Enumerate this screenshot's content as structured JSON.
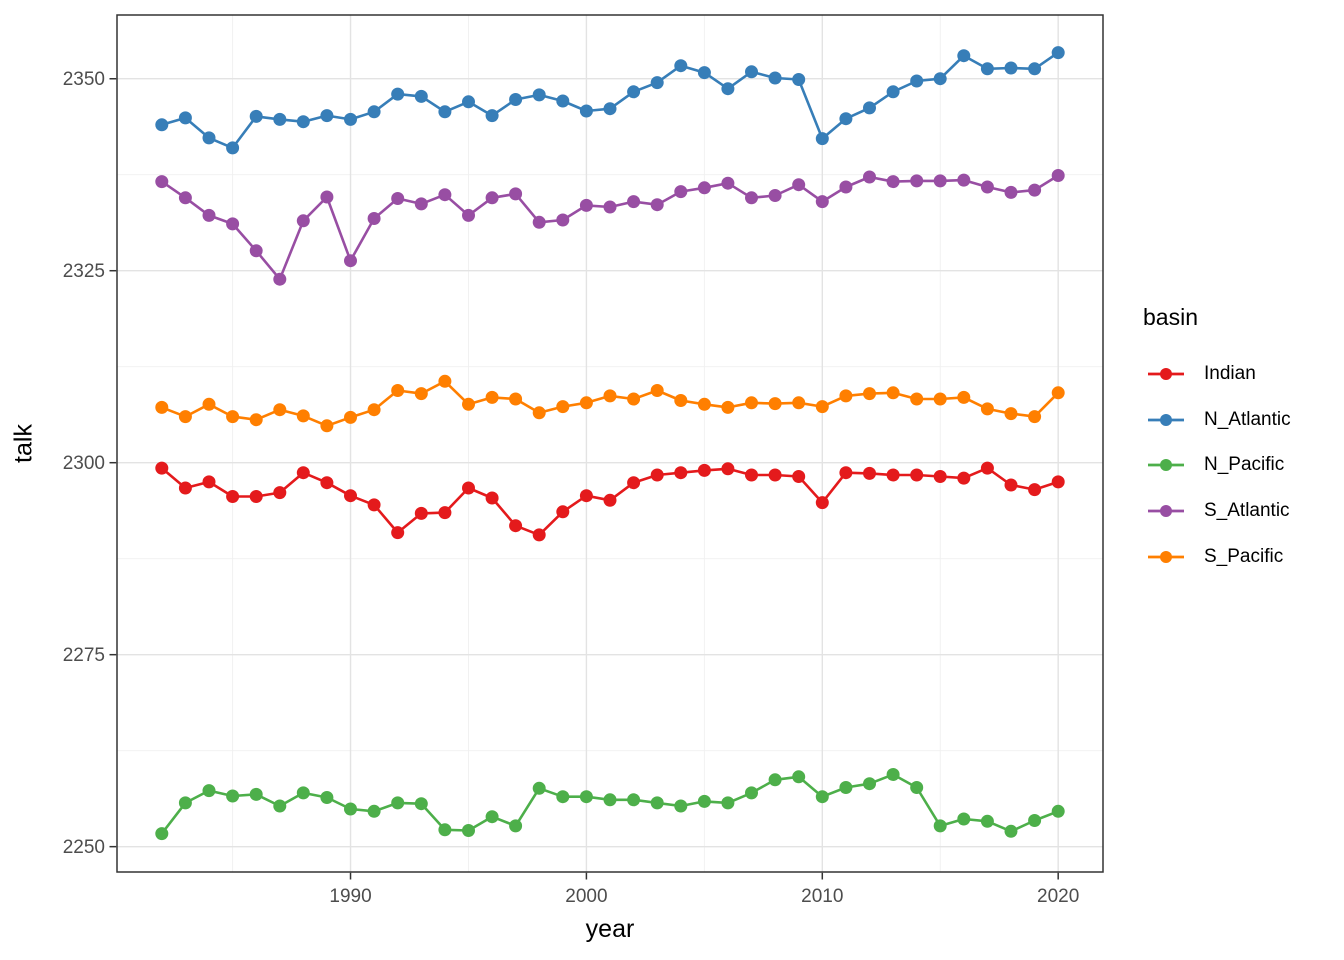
{
  "chart_data": {
    "type": "line",
    "title": "",
    "xlabel": "year",
    "ylabel": "talk",
    "legend_title": "basin",
    "legend_position": "right",
    "grid": true,
    "xlim": [
      1980.1,
      2021.9
    ],
    "ylim": [
      2246.7,
      2358.3
    ],
    "xticks": [
      1990,
      2000,
      2010,
      2020
    ],
    "xticks_minor": [
      1985,
      1995,
      2005,
      2015
    ],
    "yticks": [
      2250,
      2275,
      2300,
      2325,
      2350
    ],
    "yticks_minor": [
      2262.5,
      2287.5,
      2312.5,
      2337.5
    ],
    "x": [
      1982,
      1983,
      1984,
      1985,
      1986,
      1987,
      1988,
      1989,
      1990,
      1991,
      1992,
      1993,
      1994,
      1995,
      1996,
      1997,
      1998,
      1999,
      2000,
      2001,
      2002,
      2003,
      2004,
      2005,
      2006,
      2007,
      2008,
      2009,
      2010,
      2011,
      2012,
      2013,
      2014,
      2015,
      2016,
      2017,
      2018,
      2019,
      2020
    ],
    "series": [
      {
        "name": "Indian",
        "color": "#E41A1C",
        "values": [
          2299.3,
          2296.7,
          2297.5,
          2295.6,
          2295.6,
          2296.1,
          2298.7,
          2297.4,
          2295.7,
          2294.5,
          2290.9,
          2293.4,
          2293.5,
          2296.7,
          2295.4,
          2291.8,
          2290.6,
          2293.6,
          2295.7,
          2295.1,
          2297.4,
          2298.4,
          2298.7,
          2299.0,
          2299.2,
          2298.4,
          2298.4,
          2298.2,
          2294.8,
          2298.7,
          2298.6,
          2298.4,
          2298.4,
          2298.2,
          2298.0,
          2299.3,
          2297.1,
          2296.5,
          2297.5
        ]
      },
      {
        "name": "N_Atlantic",
        "color": "#377EB8",
        "values": [
          2344.0,
          2344.9,
          2342.3,
          2341.0,
          2345.1,
          2344.7,
          2344.4,
          2345.2,
          2344.7,
          2345.7,
          2348.0,
          2347.7,
          2345.7,
          2347.0,
          2345.2,
          2347.3,
          2347.9,
          2347.1,
          2345.8,
          2346.1,
          2348.3,
          2349.5,
          2351.7,
          2350.8,
          2348.7,
          2350.9,
          2350.1,
          2349.9,
          2342.2,
          2344.8,
          2346.2,
          2348.3,
          2349.7,
          2350.0,
          2353.0,
          2351.3,
          2351.4,
          2351.3,
          2353.4
        ]
      },
      {
        "name": "N_Pacific",
        "color": "#4DAF4A",
        "values": [
          2251.7,
          2255.7,
          2257.3,
          2256.6,
          2256.8,
          2255.3,
          2257.0,
          2256.4,
          2254.9,
          2254.6,
          2255.7,
          2255.6,
          2252.2,
          2252.1,
          2253.9,
          2252.7,
          2257.6,
          2256.5,
          2256.5,
          2256.1,
          2256.1,
          2255.7,
          2255.3,
          2255.9,
          2255.7,
          2257.0,
          2258.7,
          2259.1,
          2256.5,
          2257.7,
          2258.2,
          2259.4,
          2257.7,
          2252.7,
          2253.6,
          2253.3,
          2252.0,
          2253.4,
          2254.6
        ]
      },
      {
        "name": "S_Atlantic",
        "color": "#984EA3",
        "values": [
          2336.6,
          2334.5,
          2332.2,
          2331.1,
          2327.6,
          2323.9,
          2331.5,
          2334.6,
          2326.3,
          2331.8,
          2334.4,
          2333.7,
          2334.9,
          2332.2,
          2334.5,
          2335.0,
          2331.3,
          2331.6,
          2333.5,
          2333.3,
          2334.0,
          2333.6,
          2335.3,
          2335.8,
          2336.4,
          2334.5,
          2334.8,
          2336.2,
          2334.0,
          2335.9,
          2337.2,
          2336.6,
          2336.7,
          2336.7,
          2336.8,
          2335.9,
          2335.2,
          2335.5,
          2337.4
        ]
      },
      {
        "name": "S_Pacific",
        "color": "#FF7F00",
        "values": [
          2307.2,
          2306.0,
          2307.6,
          2306.0,
          2305.6,
          2306.9,
          2306.1,
          2304.8,
          2305.9,
          2306.9,
          2309.4,
          2309.0,
          2310.6,
          2307.6,
          2308.5,
          2308.3,
          2306.5,
          2307.3,
          2307.8,
          2308.7,
          2308.3,
          2309.4,
          2308.1,
          2307.6,
          2307.2,
          2307.8,
          2307.7,
          2307.8,
          2307.3,
          2308.7,
          2309.0,
          2309.1,
          2308.3,
          2308.3,
          2308.5,
          2307.0,
          2306.4,
          2306.0,
          2309.1
        ]
      }
    ],
    "style": {
      "panel_border_color": "#333333",
      "grid_major_color": "#e3e3e3",
      "grid_minor_color": "#f0f0f0",
      "tick_color": "#333333",
      "tick_label_color": "#4d4d4d",
      "point_radius": 6.5,
      "line_width": 2.6
    }
  }
}
